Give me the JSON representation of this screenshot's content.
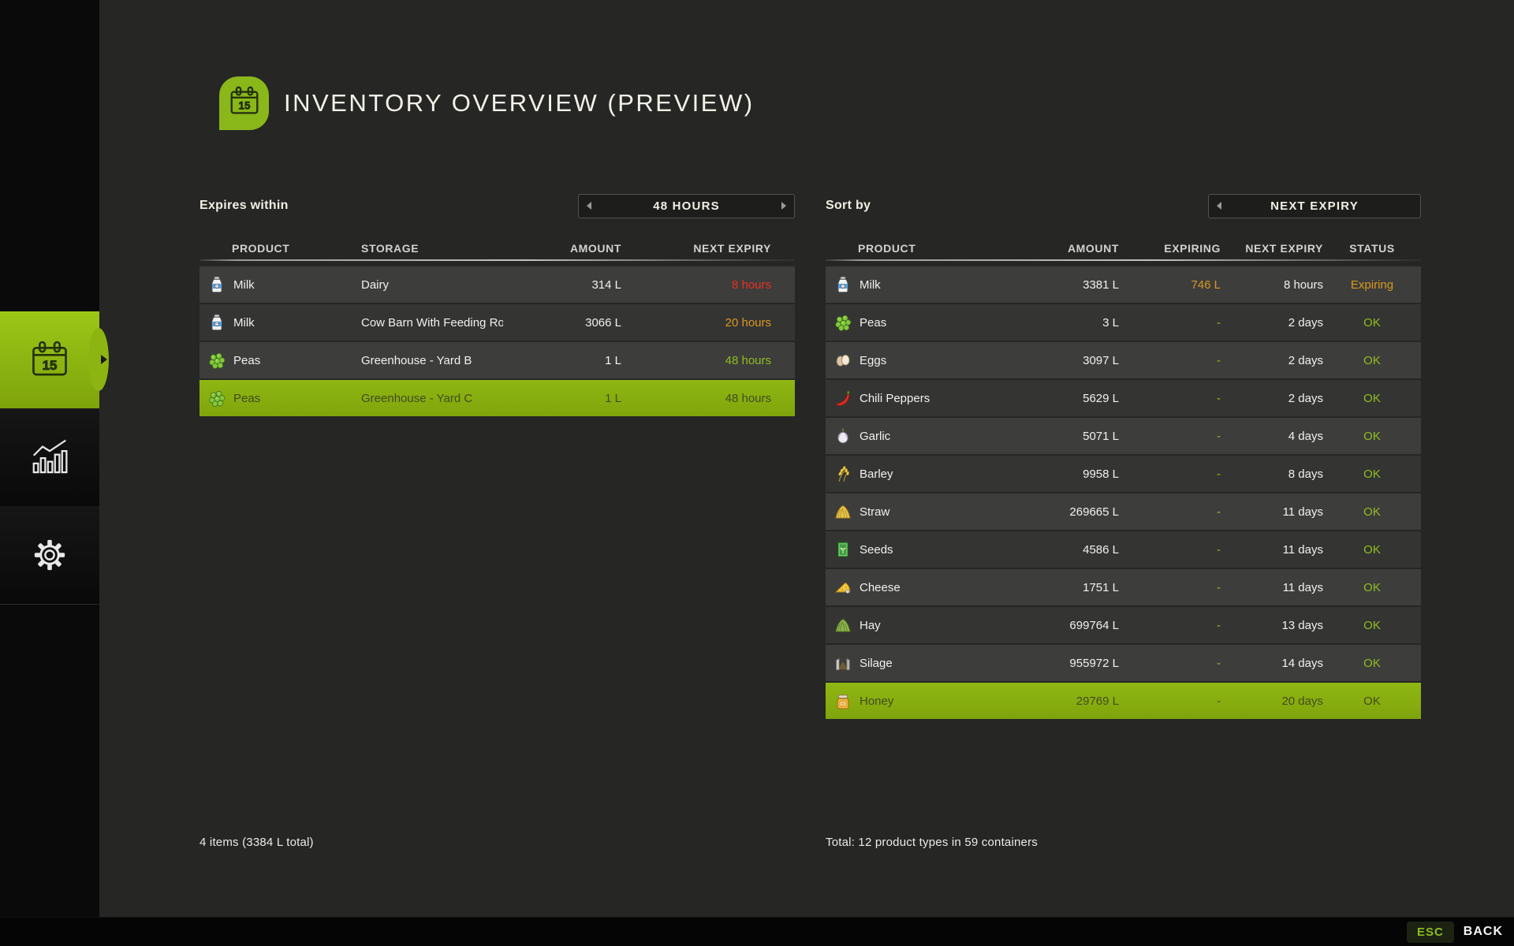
{
  "app": {
    "title": "INVENTORY OVERVIEW (PREVIEW)"
  },
  "sidebar": {
    "items": [
      {
        "id": "inventory",
        "icon": "calendar-15-icon",
        "active": true
      },
      {
        "id": "statistics",
        "icon": "bar-chart-icon",
        "active": false
      },
      {
        "id": "settings",
        "icon": "gear-icon",
        "active": false
      }
    ]
  },
  "left_panel": {
    "filter_label": "Expires within",
    "filter_value": "48 HOURS",
    "columns": [
      "PRODUCT",
      "STORAGE",
      "AMOUNT",
      "NEXT EXPIRY"
    ],
    "rows": [
      {
        "icon": "milk",
        "product": "Milk",
        "storage": "Dairy",
        "amount": "314 L",
        "expiry": "8 hours",
        "expiry_color": "red",
        "selected": false
      },
      {
        "icon": "milk",
        "product": "Milk",
        "storage": "Cow Barn With Feeding Ro...",
        "amount": "3066 L",
        "expiry": "20 hours",
        "expiry_color": "amber",
        "selected": false
      },
      {
        "icon": "peas",
        "product": "Peas",
        "storage": "Greenhouse - Yard B",
        "amount": "1 L",
        "expiry": "48 hours",
        "expiry_color": "green",
        "selected": false
      },
      {
        "icon": "peas",
        "product": "Peas",
        "storage": "Greenhouse - Yard C",
        "amount": "1 L",
        "expiry": "48 hours",
        "expiry_color": "green",
        "selected": true
      }
    ],
    "summary": "4 items (3384 L total)"
  },
  "right_panel": {
    "sort_label": "Sort by",
    "sort_value": "NEXT EXPIRY",
    "columns": [
      "PRODUCT",
      "AMOUNT",
      "EXPIRING",
      "NEXT EXPIRY",
      "STATUS"
    ],
    "rows": [
      {
        "icon": "milk",
        "product": "Milk",
        "amount": "3381 L",
        "expiring": "746 L",
        "expiring_color": "amber",
        "expiry": "8 hours",
        "status": "Expiring",
        "status_color": "amber",
        "selected": false
      },
      {
        "icon": "peas",
        "product": "Peas",
        "amount": "3 L",
        "expiring": "-",
        "expiring_color": "green",
        "expiry": "2 days",
        "status": "OK",
        "status_color": "green",
        "selected": false
      },
      {
        "icon": "eggs",
        "product": "Eggs",
        "amount": "3097 L",
        "expiring": "-",
        "expiring_color": "green",
        "expiry": "2 days",
        "status": "OK",
        "status_color": "green",
        "selected": false
      },
      {
        "icon": "chili",
        "product": "Chili Peppers",
        "amount": "5629 L",
        "expiring": "-",
        "expiring_color": "green",
        "expiry": "2 days",
        "status": "OK",
        "status_color": "green",
        "selected": false
      },
      {
        "icon": "garlic",
        "product": "Garlic",
        "amount": "5071 L",
        "expiring": "-",
        "expiring_color": "green",
        "expiry": "4 days",
        "status": "OK",
        "status_color": "green",
        "selected": false
      },
      {
        "icon": "barley",
        "product": "Barley",
        "amount": "9958 L",
        "expiring": "-",
        "expiring_color": "green",
        "expiry": "8 days",
        "status": "OK",
        "status_color": "green",
        "selected": false
      },
      {
        "icon": "straw",
        "product": "Straw",
        "amount": "269665 L",
        "expiring": "-",
        "expiring_color": "green",
        "expiry": "11 days",
        "status": "OK",
        "status_color": "green",
        "selected": false
      },
      {
        "icon": "seeds",
        "product": "Seeds",
        "amount": "4586 L",
        "expiring": "-",
        "expiring_color": "green",
        "expiry": "11 days",
        "status": "OK",
        "status_color": "green",
        "selected": false
      },
      {
        "icon": "cheese",
        "product": "Cheese",
        "amount": "1751 L",
        "expiring": "-",
        "expiring_color": "green",
        "expiry": "11 days",
        "status": "OK",
        "status_color": "green",
        "selected": false
      },
      {
        "icon": "hay",
        "product": "Hay",
        "amount": "699764 L",
        "expiring": "-",
        "expiring_color": "green",
        "expiry": "13 days",
        "status": "OK",
        "status_color": "green",
        "selected": false
      },
      {
        "icon": "silage",
        "product": "Silage",
        "amount": "955972 L",
        "expiring": "-",
        "expiring_color": "green",
        "expiry": "14 days",
        "status": "OK",
        "status_color": "green",
        "selected": false
      },
      {
        "icon": "honey",
        "product": "Honey",
        "amount": "29769 L",
        "expiring": "-",
        "expiring_color": "green",
        "expiry": "20 days",
        "status": "OK",
        "status_color": "green",
        "selected": true
      }
    ],
    "summary": "Total: 12 product types in 59 containers"
  },
  "footer": {
    "esc_label": "ESC",
    "back_label": "BACK"
  },
  "colors": {
    "accent": "#8fbf1d",
    "selected_row": "#86ac0f",
    "red": "#ed2d24",
    "amber": "#d9991f",
    "row_odd": "#3d3d3c",
    "row_even": "#343433"
  }
}
